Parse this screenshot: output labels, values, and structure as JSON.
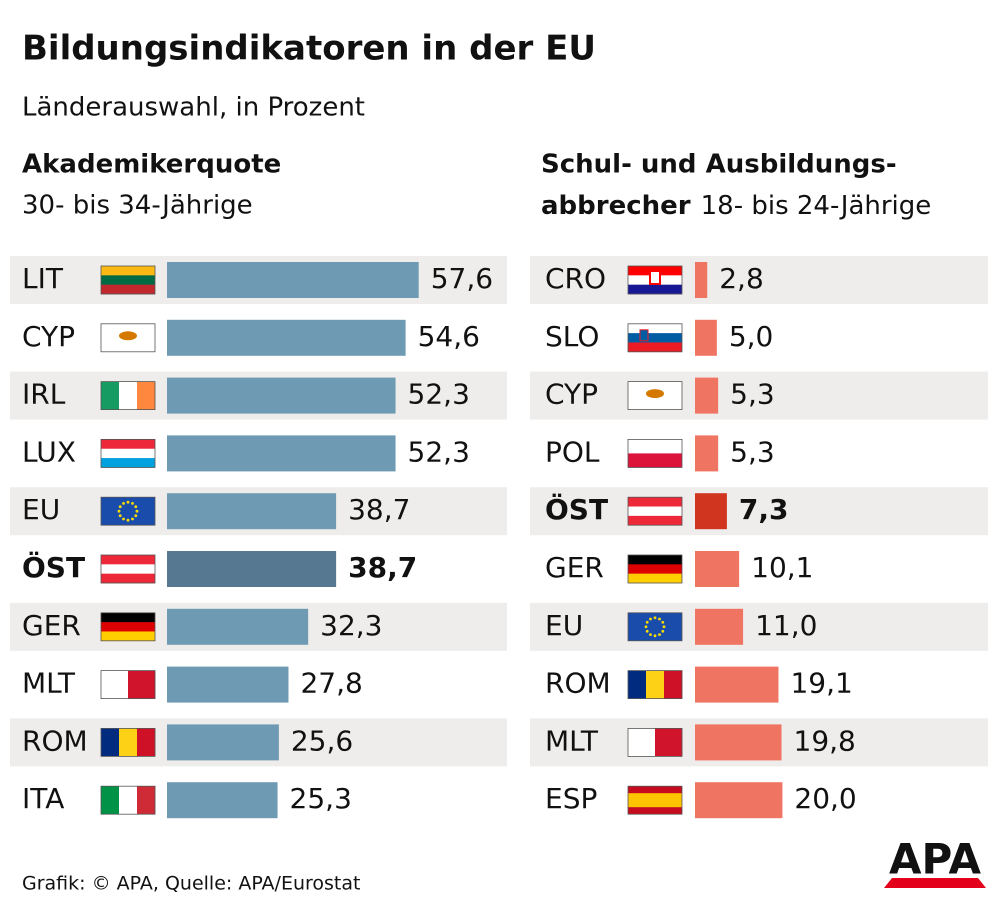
{
  "title": "Bildungsindikatoren in der EU",
  "subtitle": "Länderauswahl, in Prozent",
  "source": "Grafik: © APA, Quelle: APA/Eurostat",
  "logo": "APA",
  "chart_data": [
    {
      "type": "bar",
      "orientation": "horizontal",
      "title": [
        "Akademikerquote"
      ],
      "subtitle": "30- bis 34-Jährige",
      "categories": [
        "LIT",
        "CYP",
        "IRL",
        "LUX",
        "EU",
        "ÖST",
        "GER",
        "MLT",
        "ROM",
        "ITA"
      ],
      "values": [
        57.6,
        54.6,
        52.3,
        52.3,
        38.7,
        38.7,
        32.3,
        27.8,
        25.6,
        25.3
      ],
      "value_labels": [
        "57,6",
        "54,6",
        "52,3",
        "52,3",
        "38,7",
        "38,7",
        "32,3",
        "27,8",
        "25,6",
        "25,3"
      ],
      "colors": [
        "#6e9ab4",
        "#6e9ab4",
        "#6e9ab4",
        "#6e9ab4",
        "#6e9ab4",
        "#567890",
        "#6e9ab4",
        "#6e9ab4",
        "#6e9ab4",
        "#6e9ab4"
      ],
      "highlight_color": "#567890"
    },
    {
      "type": "bar",
      "orientation": "horizontal",
      "title": [
        "Schul- und Ausbildungs-",
        "abbrecher"
      ],
      "subtitle": "18- bis 24-Jährige",
      "categories": [
        "CRO",
        "SLO",
        "CYP",
        "POL",
        "ÖST",
        "GER",
        "EU",
        "ROM",
        "MLT",
        "ESP"
      ],
      "values": [
        2.8,
        5.0,
        5.3,
        5.3,
        7.3,
        10.1,
        11.0,
        19.1,
        19.8,
        20.0
      ],
      "value_labels": [
        "2,8",
        "5,0",
        "5,3",
        "5,3",
        "7,3",
        "10,1",
        "11,0",
        "19,1",
        "19,8",
        "20,0"
      ],
      "colors": [
        "#f07462",
        "#f07462",
        "#f07462",
        "#f07462",
        "#d0361f",
        "#f07462",
        "#f07462",
        "#f07462",
        "#f07462",
        "#f07462"
      ],
      "highlight_color": "#d0361f"
    }
  ]
}
